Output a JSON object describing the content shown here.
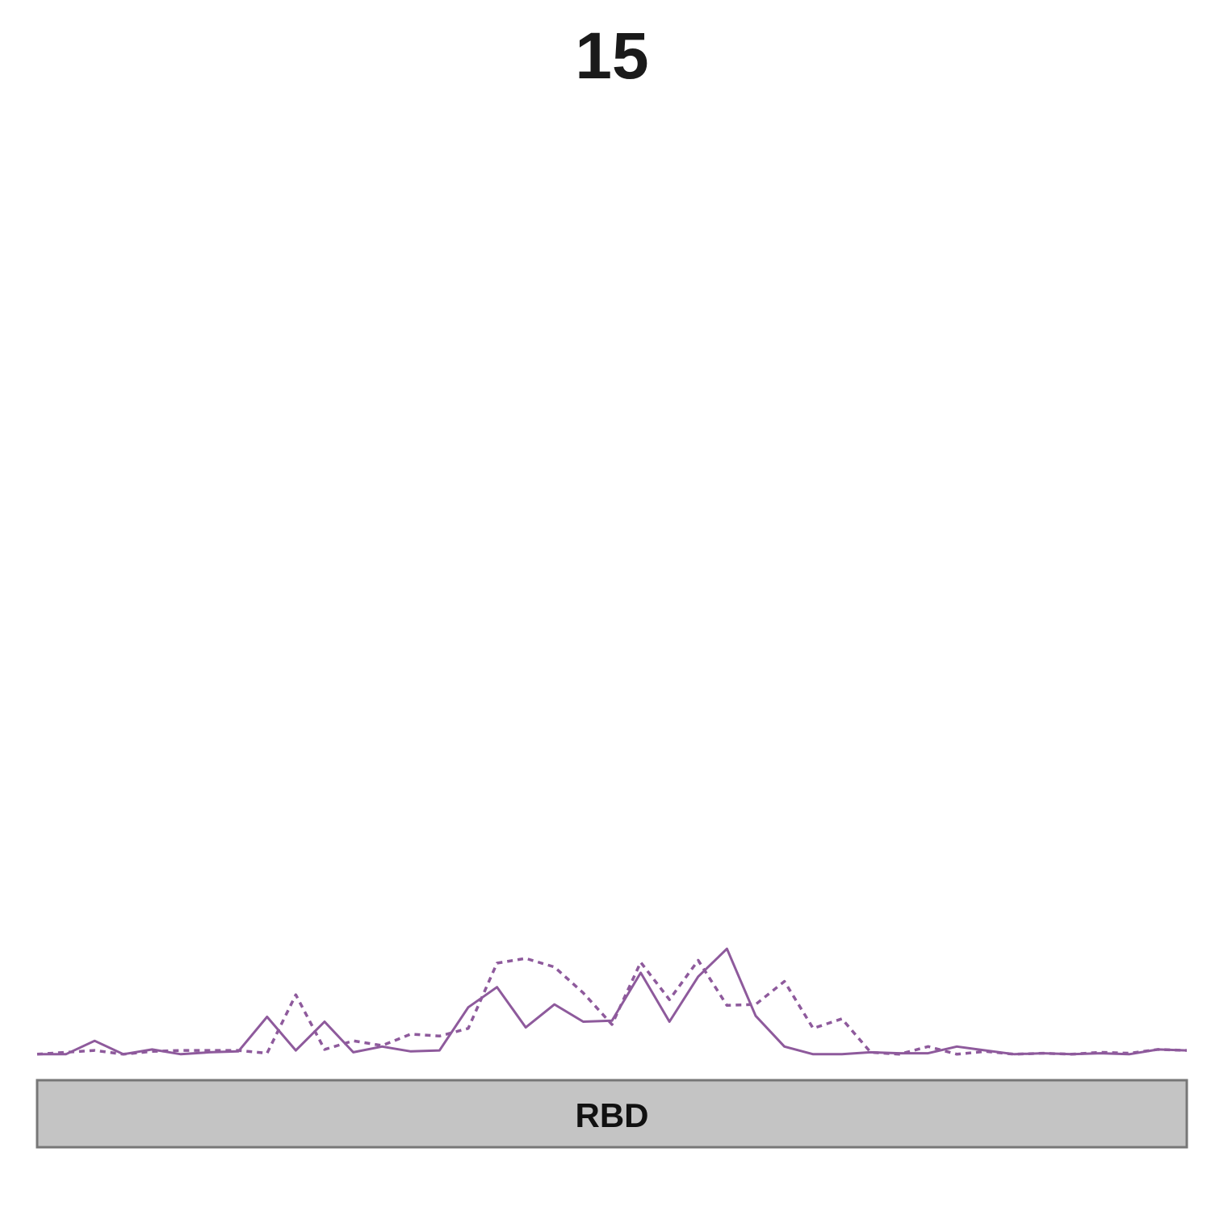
{
  "chart_data": {
    "type": "line",
    "title": "15",
    "xlabel": "",
    "ylabel": "",
    "xlim": [
      1,
      41
    ],
    "ylim": [
      0,
      1
    ],
    "grid": false,
    "legend": "none",
    "x": [
      1,
      2,
      3,
      4,
      5,
      6,
      7,
      8,
      9,
      10,
      11,
      12,
      13,
      14,
      15,
      16,
      17,
      18,
      19,
      20,
      21,
      22,
      23,
      24,
      25,
      26,
      27,
      28,
      29,
      30,
      31,
      32,
      33,
      34,
      35,
      36,
      37,
      38,
      39,
      40,
      41
    ],
    "series": [
      {
        "style": "solid",
        "color": "#8e5a9c",
        "values": [
          0.001,
          0.001,
          0.015,
          0.001,
          0.006,
          0.001,
          0.003,
          0.004,
          0.04,
          0.005,
          0.035,
          0.003,
          0.009,
          0.004,
          0.005,
          0.05,
          0.071,
          0.029,
          0.053,
          0.035,
          0.036,
          0.086,
          0.035,
          0.082,
          0.111,
          0.041,
          0.009,
          0.001,
          0.001,
          0.003,
          0.002,
          0.002,
          0.009,
          0.005,
          0.001,
          0.002,
          0.001,
          0.002,
          0.001,
          0.006,
          0.005
        ]
      },
      {
        "style": "dotted",
        "color": "#8e5a9c",
        "values": [
          0.001,
          0.003,
          0.005,
          0.001,
          0.004,
          0.005,
          0.005,
          0.005,
          0.002,
          0.063,
          0.006,
          0.015,
          0.01,
          0.022,
          0.02,
          0.028,
          0.096,
          0.101,
          0.092,
          0.065,
          0.032,
          0.097,
          0.058,
          0.099,
          0.052,
          0.053,
          0.077,
          0.028,
          0.038,
          0.003,
          0.001,
          0.009,
          0.001,
          0.004,
          0.001,
          0.002,
          0.001,
          0.003,
          0.002,
          0.006,
          0.005
        ]
      }
    ],
    "domain_track": {
      "label": "RBD",
      "fill": "#c4c4c4",
      "stroke": "#777777",
      "start": 1,
      "end": 41
    }
  }
}
